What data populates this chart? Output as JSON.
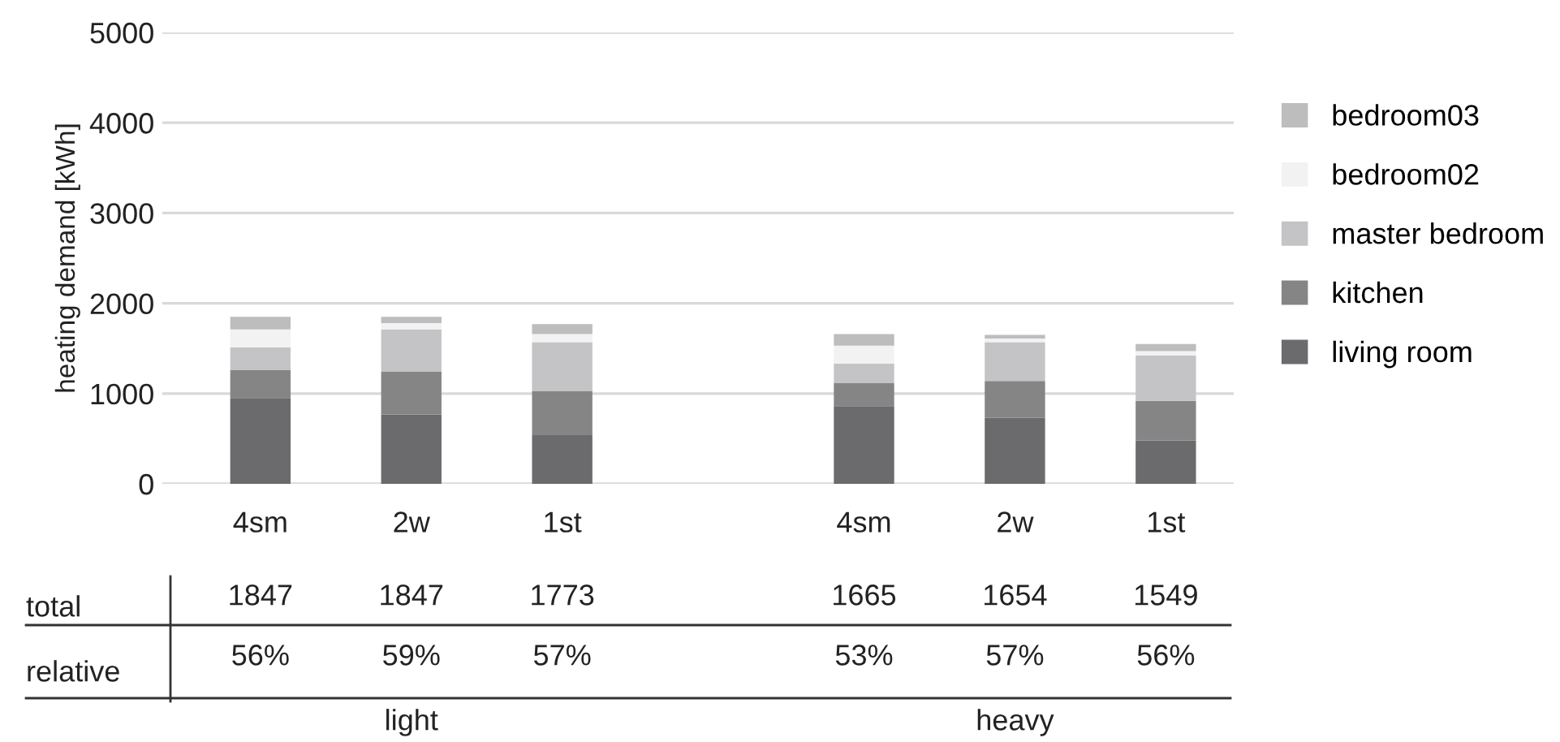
{
  "chart_data": {
    "type": "bar",
    "stacked": true,
    "ylabel": "heating demand [kWh]",
    "categories": [
      "4sm",
      "2w",
      "1st",
      null,
      "4sm",
      "2w",
      "1st"
    ],
    "series": [
      {
        "name": "living room",
        "color": "#6b6b6e",
        "values": [
          950,
          770,
          540,
          null,
          860,
          730,
          480
        ]
      },
      {
        "name": "kitchen",
        "color": "#858585",
        "values": [
          310,
          470,
          490,
          null,
          260,
          410,
          440
        ]
      },
      {
        "name": "master bedroom",
        "color": "#c4c4c6",
        "values": [
          250,
          470,
          540,
          null,
          210,
          430,
          500
        ]
      },
      {
        "name": "bedroom02",
        "color": "#f2f2f2",
        "values": [
          200,
          70,
          90,
          null,
          200,
          40,
          50
        ]
      },
      {
        "name": "bedroom03",
        "color": "#bdbdbd",
        "values": [
          140,
          70,
          110,
          null,
          130,
          40,
          80
        ]
      }
    ],
    "ylim": [
      0,
      5000
    ],
    "yticks": [
      0,
      1000,
      2000,
      3000,
      4000,
      5000
    ],
    "grid": "y",
    "legend": "right",
    "annotations": [
      "total",
      "relative",
      "1847",
      "1847",
      "1773",
      null,
      "1665",
      "1654",
      "1549",
      "56%",
      "59%",
      "57%",
      null,
      "53%",
      "57%",
      "56%",
      "light",
      "heavy"
    ]
  }
}
